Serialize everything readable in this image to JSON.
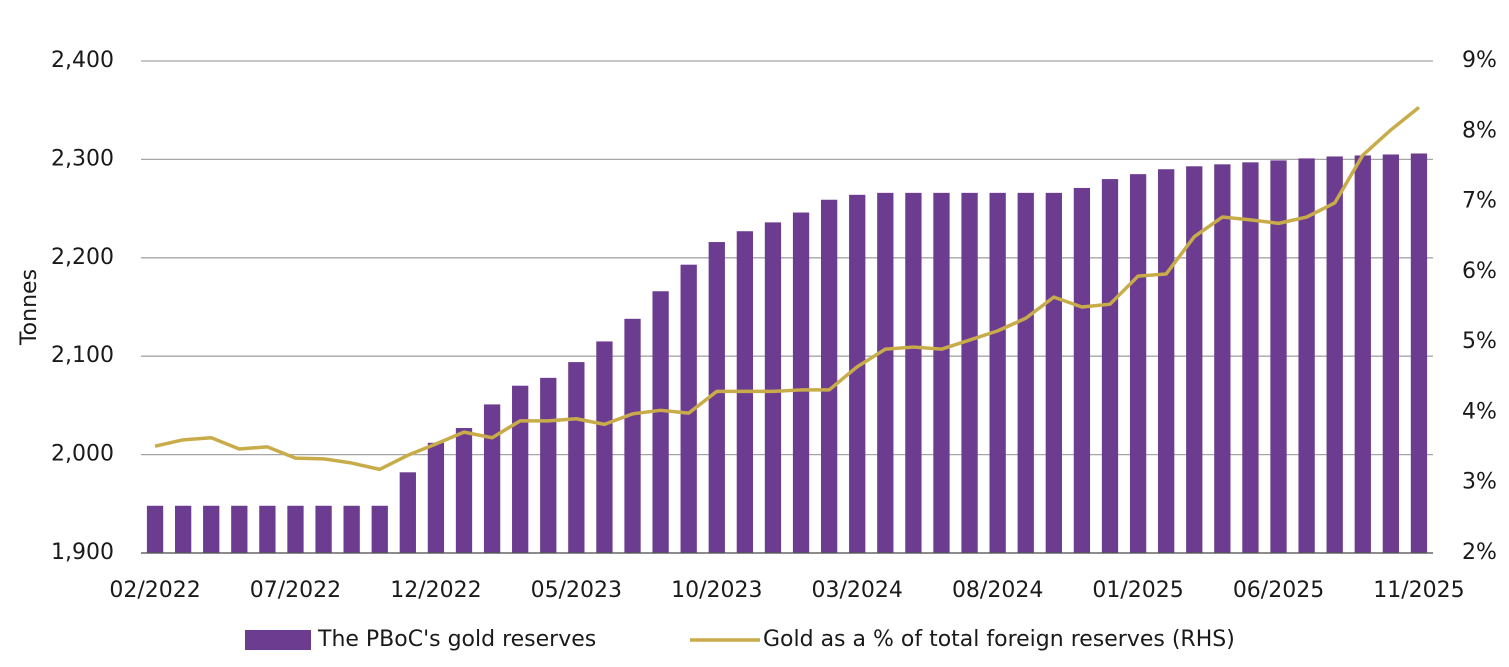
{
  "chart_data": {
    "type": "bar",
    "y_label": "Tonnes",
    "categories": [
      "02/2022",
      null,
      null,
      null,
      null,
      "07/2022",
      null,
      null,
      null,
      null,
      "12/2022",
      null,
      null,
      null,
      null,
      "05/2023",
      null,
      null,
      null,
      null,
      "10/2023",
      null,
      null,
      null,
      null,
      "03/2024",
      null,
      null,
      null,
      null,
      "08/2024",
      null,
      null,
      null,
      null,
      "01/2025",
      null,
      null,
      null,
      null,
      "06/2025",
      null,
      null,
      null,
      null,
      "11/2025"
    ],
    "series": [
      {
        "name": "The PBoC's gold reserves",
        "color": "#6b3c8f",
        "type": "bar",
        "values": [
          1948,
          1948,
          1948,
          1948,
          1948,
          1948,
          1948,
          1948,
          1948,
          1982,
          2012,
          2027,
          2051,
          2070,
          2078,
          2094,
          2115,
          2138,
          2166,
          2193,
          2216,
          2227,
          2236,
          2246,
          2259,
          2264,
          2266,
          2266,
          2266,
          2266,
          2266,
          2266,
          2266,
          2271,
          2280,
          2285,
          2290,
          2293,
          2295,
          2297,
          2299,
          2301,
          2303,
          2304,
          2305,
          2306
        ]
      },
      {
        "name": "Gold as a % of total foreign reserves (RHS)",
        "color": "#c9ac4a",
        "type": "line",
        "axis": "y2",
        "values": [
          3.52,
          3.61,
          3.64,
          3.48,
          3.51,
          3.35,
          3.34,
          3.28,
          3.19,
          3.39,
          3.55,
          3.72,
          3.64,
          3.88,
          3.88,
          3.91,
          3.83,
          3.98,
          4.03,
          3.99,
          4.3,
          4.3,
          4.3,
          4.32,
          4.32,
          4.65,
          4.9,
          4.93,
          4.9,
          5.03,
          5.16,
          5.34,
          5.64,
          5.5,
          5.54,
          5.94,
          5.97,
          6.5,
          6.78,
          6.74,
          6.69,
          6.78,
          6.98,
          7.66,
          8.02,
          8.34
        ]
      }
    ],
    "ylim": [
      1900,
      2400
    ],
    "yticks": [
      {
        "value": 1900,
        "label": "1,900"
      },
      {
        "value": 2000,
        "label": "2,000"
      },
      {
        "value": 2100,
        "label": "2,100"
      },
      {
        "value": 2200,
        "label": "2,200"
      },
      {
        "value": 2300,
        "label": "2,300"
      },
      {
        "value": 2400,
        "label": "2,400"
      }
    ],
    "y2lim": [
      2,
      9
    ],
    "y2ticks": [
      {
        "value": 2,
        "label": "2%"
      },
      {
        "value": 3,
        "label": "3%"
      },
      {
        "value": 4,
        "label": "4%"
      },
      {
        "value": 5,
        "label": "5%"
      },
      {
        "value": 6,
        "label": "6%"
      },
      {
        "value": 7,
        "label": "7%"
      },
      {
        "value": 8,
        "label": "8%"
      },
      {
        "value": 9,
        "label": "9%"
      }
    ],
    "grid": true,
    "legend": "bottom"
  }
}
